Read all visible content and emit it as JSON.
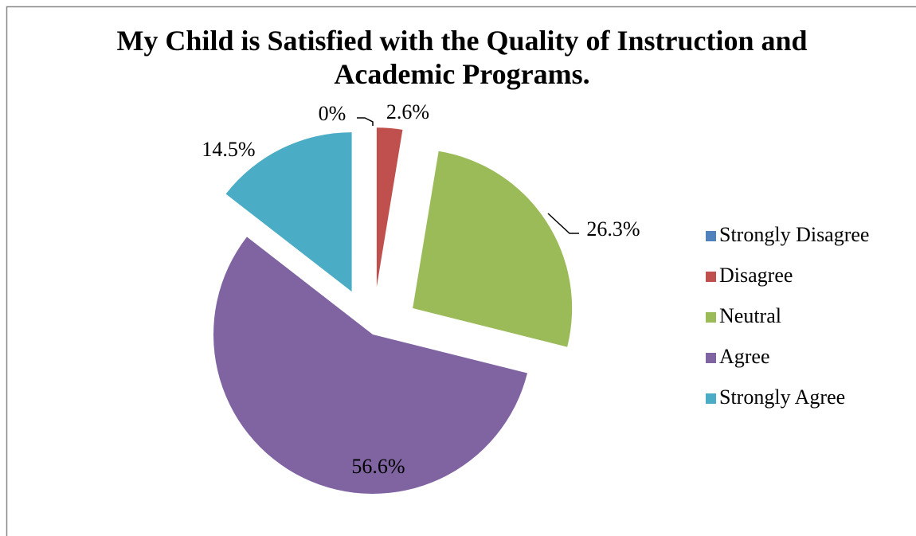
{
  "chart_data": {
    "type": "pie",
    "title": "My Child is Satisfied with the Quality of Instruction and Academic Programs.",
    "categories": [
      "Strongly Disagree",
      "Disagree",
      "Neutral",
      "Agree",
      "Strongly Agree"
    ],
    "values": [
      0,
      2.6,
      26.3,
      56.6,
      14.5
    ],
    "value_labels": [
      "0%",
      "2.6%",
      "26.3%",
      "56.6%",
      "14.5%"
    ],
    "colors": [
      "#4f81bd",
      "#c0504d",
      "#9bbb59",
      "#8064a2",
      "#4bacc6"
    ],
    "legend": "right"
  }
}
